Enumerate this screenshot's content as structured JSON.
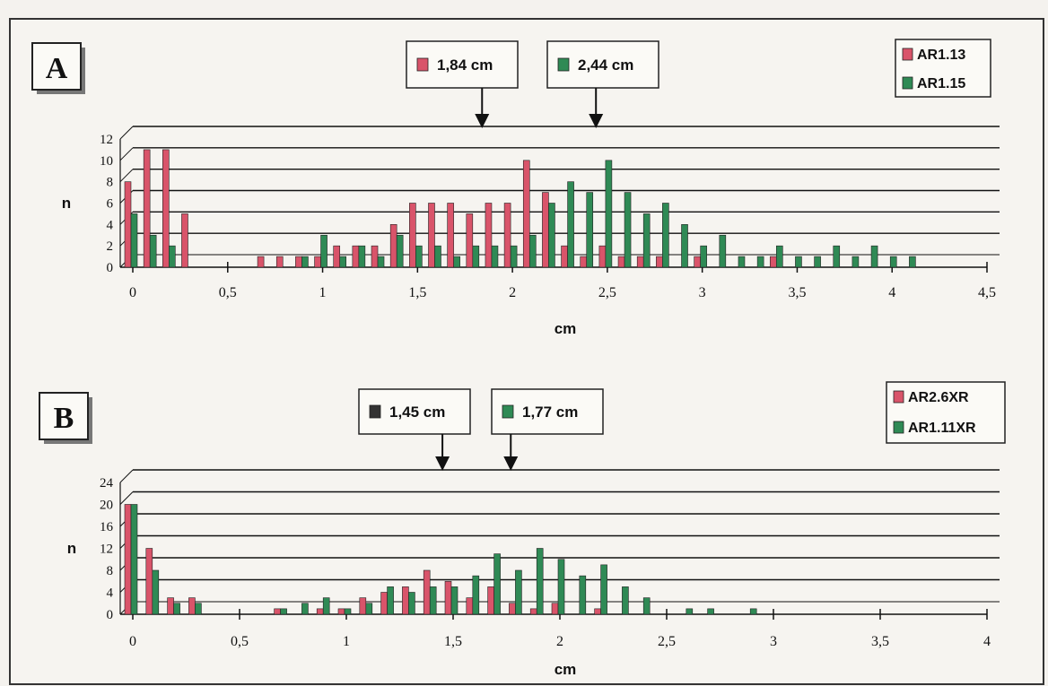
{
  "chart_data": [
    {
      "panel_label": "A",
      "type": "bar",
      "xlabel": "cm",
      "ylabel": "n",
      "xlim": [
        0,
        4.5
      ],
      "ylim": [
        0,
        12
      ],
      "x_ticks": [
        "0",
        "0,5",
        "1",
        "1,5",
        "2",
        "2,5",
        "3",
        "3,5",
        "4",
        "4,5"
      ],
      "y_ticks": [
        "0",
        "2",
        "4",
        "6",
        "8",
        "10",
        "12"
      ],
      "grid": true,
      "legend_position": "top-right",
      "series": [
        {
          "name": "AR1.13",
          "color": "#d9546a",
          "x": [
            0.0,
            0.1,
            0.2,
            0.3,
            0.7,
            0.8,
            0.9,
            1.0,
            1.1,
            1.2,
            1.3,
            1.4,
            1.5,
            1.6,
            1.7,
            1.8,
            1.9,
            2.0,
            2.1,
            2.2,
            2.3,
            2.4,
            2.5,
            2.6,
            2.7,
            2.8,
            3.0,
            3.4
          ],
          "values": [
            8,
            11,
            11,
            5,
            1,
            1,
            1,
            1,
            2,
            2,
            2,
            4,
            6,
            6,
            6,
            5,
            6,
            6,
            10,
            7,
            2,
            1,
            2,
            1,
            1,
            1,
            1,
            1
          ]
        },
        {
          "name": "AR1.15",
          "color": "#2f8a55",
          "x": [
            0.0,
            0.1,
            0.2,
            0.9,
            1.0,
            1.1,
            1.2,
            1.3,
            1.4,
            1.5,
            1.6,
            1.7,
            1.8,
            1.9,
            2.0,
            2.1,
            2.2,
            2.3,
            2.4,
            2.5,
            2.6,
            2.7,
            2.8,
            2.9,
            3.0,
            3.1,
            3.2,
            3.3,
            3.4,
            3.5,
            3.6,
            3.7,
            3.8,
            3.9,
            4.0,
            4.1
          ],
          "values": [
            5,
            3,
            2,
            1,
            3,
            1,
            2,
            1,
            3,
            2,
            2,
            1,
            2,
            2,
            2,
            3,
            6,
            8,
            7,
            10,
            7,
            5,
            6,
            4,
            2,
            3,
            1,
            1,
            2,
            1,
            1,
            2,
            1,
            2,
            1,
            1
          ]
        }
      ],
      "annotations": [
        {
          "text": "1,84 cm",
          "x": 1.84,
          "series": "AR1.13"
        },
        {
          "text": "2,44 cm",
          "x": 2.44,
          "series": "AR1.15"
        }
      ]
    },
    {
      "panel_label": "B",
      "type": "bar",
      "xlabel": "cm",
      "ylabel": "n",
      "xlim": [
        0,
        4
      ],
      "ylim": [
        0,
        24
      ],
      "x_ticks": [
        "0",
        "0,5",
        "1",
        "1,5",
        "2",
        "2,5",
        "3",
        "3,5",
        "4"
      ],
      "y_ticks": [
        "0",
        "4",
        "8",
        "12",
        "16",
        "20",
        "24"
      ],
      "grid": true,
      "legend_position": "top-right",
      "series": [
        {
          "name": "AR2.6XR",
          "color": "#d9546a",
          "x": [
            0.0,
            0.1,
            0.2,
            0.3,
            0.7,
            0.9,
            1.0,
            1.1,
            1.2,
            1.3,
            1.4,
            1.5,
            1.6,
            1.7,
            1.8,
            1.9,
            2.0,
            2.2
          ],
          "values": [
            20,
            12,
            3,
            3,
            1,
            1,
            1,
            3,
            4,
            5,
            8,
            6,
            3,
            5,
            2,
            1,
            2,
            1
          ]
        },
        {
          "name": "AR1.11XR",
          "color": "#2f8a55",
          "x": [
            0.0,
            0.1,
            0.2,
            0.3,
            0.7,
            0.8,
            0.9,
            1.0,
            1.1,
            1.2,
            1.3,
            1.4,
            1.5,
            1.6,
            1.7,
            1.8,
            1.9,
            2.0,
            2.1,
            2.2,
            2.3,
            2.4,
            2.6,
            2.7,
            2.9
          ],
          "values": [
            20,
            8,
            2,
            2,
            1,
            2,
            3,
            1,
            2,
            5,
            4,
            5,
            5,
            7,
            11,
            8,
            12,
            10,
            7,
            9,
            5,
            3,
            1,
            1,
            1
          ]
        }
      ],
      "annotations": [
        {
          "text": "1,45 cm",
          "x": 1.45,
          "series": "AR2.6XR"
        },
        {
          "text": "1,77 cm",
          "x": 1.77,
          "series": "AR1.11XR"
        }
      ]
    }
  ]
}
